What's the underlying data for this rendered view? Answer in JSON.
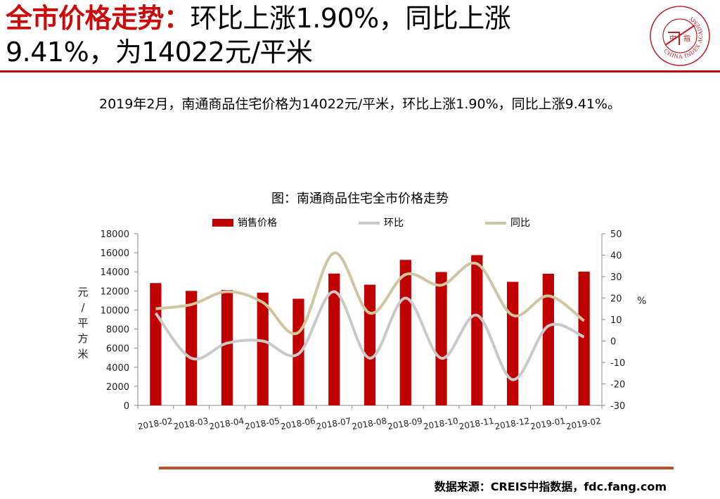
{
  "slide": {
    "title_accent": "全市价格走势：",
    "title_rest_line1": "环比上涨1.90%，同比上涨",
    "title_line2": "9.41%，为14022元/平米",
    "summary": "2019年2月，南通商品住宅价格为14022元/平米，环比上涨1.90%，同比上涨9.41%。",
    "source": "数据来源：CREIS中指数据，fdc.fang.com"
  },
  "logo": {
    "name": "china-index-academy-seal",
    "ring_text": "CHINA INDEX ACADEMY",
    "center_chars": [
      "中",
      "指"
    ],
    "color": "#b8212a"
  },
  "colors": {
    "accent": "#cc0a0a",
    "bar": "#c00000",
    "mom": "#c9c9c9",
    "yoy": "#cfc59f",
    "rule": "#c00000",
    "source_rule": "#b5542a"
  },
  "chart_data": {
    "type": "bar",
    "title": "图：南通商品住宅全市价格走势",
    "categories": [
      "2018-02",
      "2018-03",
      "2018-04",
      "2018-05",
      "2018-06",
      "2018-07",
      "2018-08",
      "2018-09",
      "2018-10",
      "2018-11",
      "2018-12",
      "2019-01",
      "2019-02"
    ],
    "series": [
      {
        "name": "销售价格",
        "type": "bar",
        "axis": "left",
        "values": [
          12820,
          12000,
          12100,
          11820,
          11180,
          13820,
          12650,
          15250,
          13980,
          15750,
          12950,
          13800,
          14022
        ]
      },
      {
        "name": "环比",
        "type": "line",
        "axis": "right",
        "values": [
          13,
          -8,
          -1,
          0,
          -6,
          23,
          -8,
          20,
          -8,
          12,
          -18,
          7,
          1.9
        ]
      },
      {
        "name": "同比",
        "type": "line",
        "axis": "right",
        "values": [
          15,
          17,
          23,
          18,
          4,
          41,
          13,
          31,
          26,
          36,
          12,
          21,
          9.41
        ]
      }
    ],
    "ylabel": "元/平方米",
    "y2label": "%",
    "ylim": [
      0,
      18000
    ],
    "yticks": [
      0,
      2000,
      4000,
      6000,
      8000,
      10000,
      12000,
      14000,
      16000,
      18000
    ],
    "y2lim": [
      -30,
      50
    ],
    "y2ticks": [
      -30,
      -20,
      -10,
      0,
      10,
      20,
      30,
      40,
      50
    ],
    "grid": false,
    "legend_position": "top"
  }
}
